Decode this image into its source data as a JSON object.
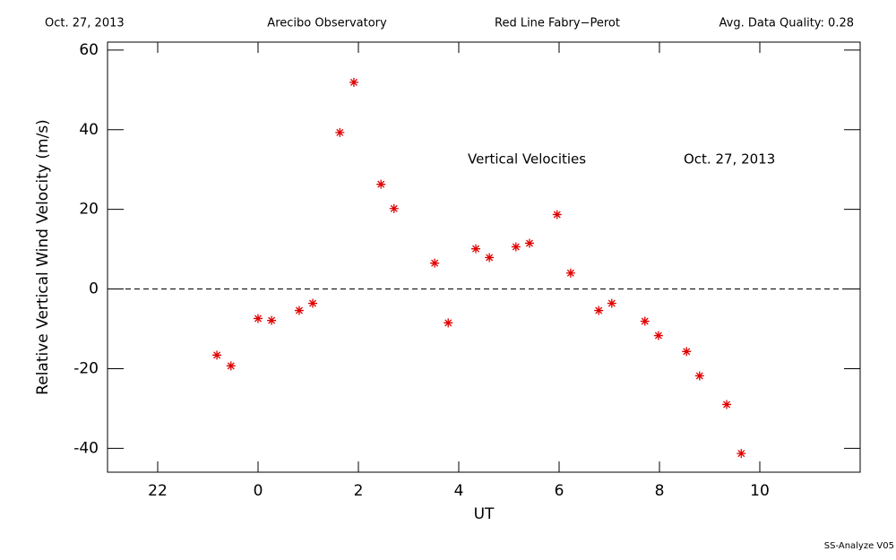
{
  "chart_data": {
    "type": "scatter",
    "header": [
      "Oct. 27, 2013",
      "Arecibo Observatory",
      "Red Line Fabry−Perot",
      "Avg. Data Quality: 0.28"
    ],
    "annotations": [
      "Vertical Velocities",
      "Oct. 27, 2013"
    ],
    "footer": "SS-Analyze V05",
    "x_label": "UT",
    "y_label": "Relative Vertical Wind Velocity (m/s)",
    "xlim": [
      -3,
      12
    ],
    "ylim": [
      -46,
      62
    ],
    "xticks": [
      {
        "value": -2,
        "label": "22"
      },
      0,
      2,
      4,
      6,
      8,
      10
    ],
    "yticks": [
      -40,
      -20,
      0,
      20,
      40,
      60
    ],
    "zero_line": {
      "y": 0,
      "style": "dashed"
    },
    "series": [
      {
        "color": "#e00000",
        "marker": "asterisk",
        "x": [
          -0.82,
          -0.54,
          0,
          0.27,
          0.82,
          1.09,
          1.63,
          1.91,
          2.45,
          2.71,
          3.52,
          3.79,
          4.34,
          4.61,
          5.14,
          5.41,
          5.96,
          6.23,
          6.79,
          7.05,
          7.71,
          7.98,
          8.54,
          8.8,
          9.34,
          9.63
        ],
        "values": [
          -16.6,
          -19.3,
          -7.4,
          -7.9,
          -5.4,
          -3.6,
          39.3,
          51.9,
          26.3,
          20.2,
          6.5,
          -8.5,
          10.1,
          7.9,
          10.6,
          11.5,
          18.7,
          4.0,
          -5.4,
          -3.6,
          -8.1,
          -11.7,
          -15.7,
          -21.8,
          -29.0,
          -41.3
        ]
      }
    ]
  }
}
